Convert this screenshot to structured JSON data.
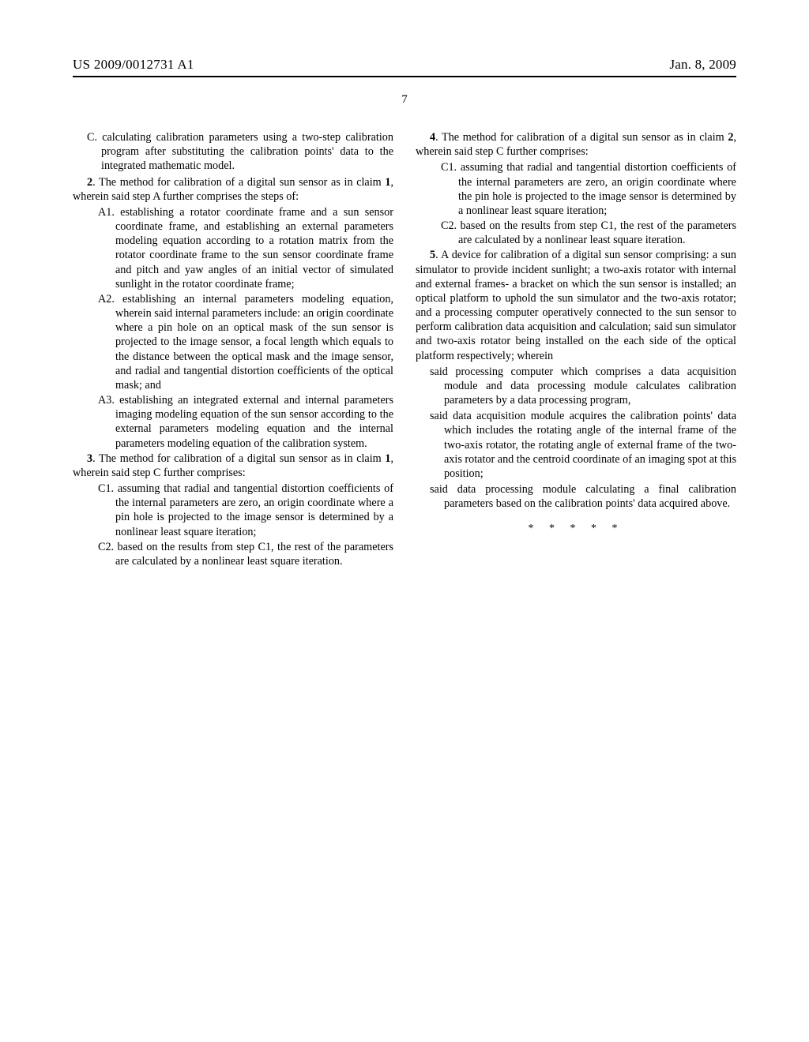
{
  "header": {
    "pub_number": "US 2009/0012731 A1",
    "pub_date": "Jan. 8, 2009"
  },
  "page_number": "7",
  "left_column": {
    "c_item": "C. calculating calibration parameters using a two-step calibration program after substituting the calibration points' data to the integrated mathematic model.",
    "claim2_intro_a": "2",
    "claim2_intro_b": ". The method for calibration of a digital sun sensor as in claim ",
    "claim2_intro_c": "1",
    "claim2_intro_d": ", wherein said step A further comprises the steps of:",
    "a1": "A1. establishing a rotator coordinate frame and a sun sensor coordinate frame, and establishing an external parameters modeling equation according to a rotation matrix from the rotator coordinate frame to the sun sensor coordinate frame and pitch and yaw angles of an initial vector of simulated sunlight in the rotator coordinate frame;",
    "a2": "A2. establishing an internal parameters modeling equation, wherein said internal parameters include: an origin coordinate where a pin hole on an optical mask of the sun sensor is projected to the image sensor, a focal length which equals to the distance between the optical mask and the image sensor, and radial and tangential distortion coefficients of the optical mask; and",
    "a3": "A3. establishing an integrated external and internal parameters imaging modeling equation of the sun sensor according to the external parameters modeling equation and the internal parameters modeling equation of the calibration system.",
    "claim3_intro_a": "3",
    "claim3_intro_b": ". The method for calibration of a digital sun sensor as in claim ",
    "claim3_intro_c": "1",
    "claim3_intro_d": ", wherein said step C further comprises:",
    "c3_1": "C1. assuming that radial and tangential distortion coefficients of the internal parameters are zero, an origin coordinate where a pin hole is projected to the image sensor is determined by a nonlinear least square iteration;",
    "c3_2": "C2. based on the results from step C1, the rest of the parameters are calculated by a nonlinear least square iteration."
  },
  "right_column": {
    "claim4_intro_a": "4",
    "claim4_intro_b": ". The method for calibration of a digital sun sensor as in claim ",
    "claim4_intro_c": "2",
    "claim4_intro_d": ", wherein said step C further comprises:",
    "c4_1": "C1. assuming that radial and tangential distortion coefficients of the internal parameters are zero, an origin coordinate where the pin hole is projected to the image sensor is determined by a nonlinear least square iteration;",
    "c4_2": "C2. based on the results from step C1, the rest of the parameters are calculated by a nonlinear least square iteration.",
    "claim5_intro_a": "5",
    "claim5_intro_b": ". A device for calibration of a digital sun sensor comprising: a sun simulator to provide incident sunlight; a two-axis rotator with internal and external frames- a bracket on which the sun sensor is installed; an optical platform to uphold the sun simulator and the two-axis rotator; and a processing computer operatively connected to the sun sensor to perform calibration data acquisition and calculation; said sun simulator and two-axis rotator being installed on the each side of the optical platform respectively; wherein",
    "d5_1": "said processing computer which comprises a data acquisition module and data processing module calculates calibration parameters by a data processing program,",
    "d5_2": "said data acquisition module acquires the calibration points' data which includes the rotating angle of the internal frame of the two-axis rotator, the rotating angle of external frame of the two-axis rotator and the centroid coordinate of an imaging spot at this position;",
    "d5_3": "said data processing module calculating a final calibration parameters based on the calibration points' data acquired above.",
    "end_marks": "*   *   *   *   *"
  }
}
